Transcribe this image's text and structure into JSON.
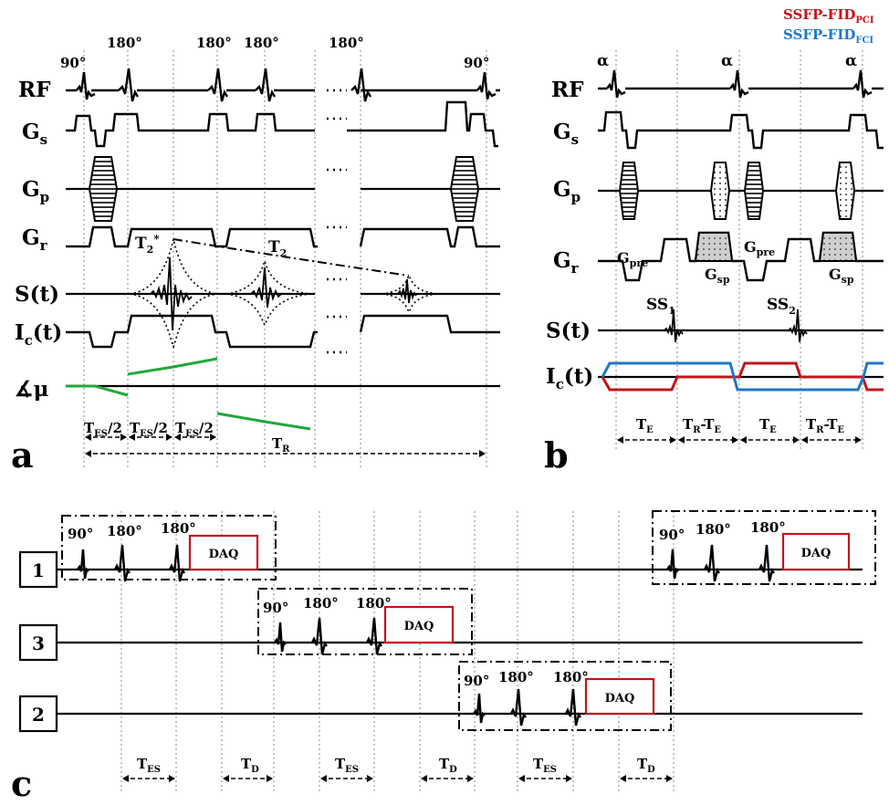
{
  "legend": {
    "pci": "SSFP-FID",
    "pci_sub": "PCI",
    "fci": "SSFP-FID",
    "fci_sub": "FCI",
    "pci_color": "#c0151b",
    "fci_color": "#1f77c8"
  },
  "panel_a": {
    "label": "a",
    "rows": [
      "RF",
      "G",
      "G",
      "G",
      "S(t)",
      "I",
      "∡μ"
    ],
    "row_subs": [
      "",
      "s",
      "p",
      "r",
      "",
      "c",
      ""
    ],
    "row_tail": [
      "",
      "",
      "",
      "",
      "",
      "(t)",
      ""
    ],
    "pulses": [
      "90°",
      "180°",
      "180°",
      "180°",
      "180°",
      "90°"
    ],
    "t2star": "T",
    "t2star_sub": "2",
    "t2star_sup": "*",
    "t2": "T",
    "t2_sub": "2",
    "timing": [
      "T",
      "T",
      "T"
    ],
    "timing_sub": [
      "ES",
      "ES",
      "ES"
    ],
    "timing_tail": [
      "/2",
      "/2",
      "/2"
    ],
    "tr": "T",
    "tr_sub": "R",
    "ellipsis": "·····",
    "phase_color": "#22a83c"
  },
  "panel_b": {
    "label": "b",
    "rows": [
      "RF",
      "G",
      "G",
      "G",
      "S(t)",
      "I"
    ],
    "row_subs": [
      "",
      "s",
      "p",
      "r",
      "",
      "c"
    ],
    "row_tail": [
      "",
      "",
      "",
      "",
      "",
      "(t)"
    ],
    "alpha": [
      "α",
      "α",
      "α"
    ],
    "gpre": [
      "G",
      "G"
    ],
    "gpre_sub": [
      "pre",
      "pre"
    ],
    "gsp": [
      "G",
      "G"
    ],
    "gsp_sub": [
      "sp",
      "sp"
    ],
    "ss": [
      "SS",
      "SS"
    ],
    "ss_sub": [
      "1",
      "2"
    ],
    "timing": [
      "T",
      "T",
      "T",
      "T"
    ],
    "timing_sub": [
      "E",
      "R",
      "E",
      "R"
    ],
    "timing_tail": [
      "",
      "-T",
      "",
      "-T"
    ],
    "timing_tail_sub": [
      "",
      "E",
      "",
      "E"
    ]
  },
  "panel_c": {
    "label": "c",
    "rows": [
      "1",
      "3",
      "2"
    ],
    "pulses": [
      "90°",
      "180°",
      "180°"
    ],
    "daq": "DAQ",
    "daq_color": "#c0151b",
    "timing": [
      "T",
      "T",
      "T",
      "T",
      "T",
      "T"
    ],
    "timing_sub": [
      "ES",
      "D",
      "ES",
      "D",
      "ES",
      "D"
    ]
  }
}
